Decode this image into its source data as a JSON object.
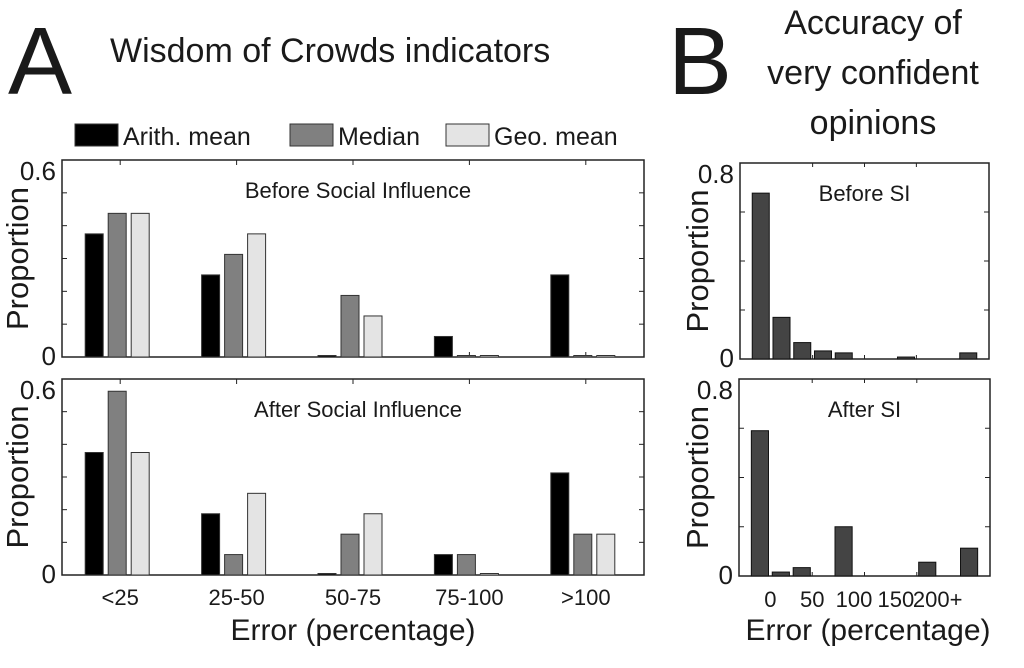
{
  "panel_a": {
    "letter": "A",
    "title": "Wisdom of Crowds indicators"
  },
  "panel_b": {
    "letter": "B",
    "title_lines": [
      "Accuracy of",
      "very confident",
      "opinions"
    ]
  },
  "legend": [
    {
      "name": "Arith. mean",
      "color": "#000000"
    },
    {
      "name": "Median",
      "color": "#808080"
    },
    {
      "name": "Geo. mean",
      "color": "#e4e4e4"
    }
  ],
  "chart_data": [
    {
      "type": "bar",
      "panel": "A",
      "title": "Before Social Influence",
      "ylabel": "Proportion",
      "xlabel": "",
      "ylim": [
        0,
        0.6
      ],
      "ytick_labels": [
        "0",
        "0.6"
      ],
      "categories": [
        "<25",
        "25-50",
        "50-75",
        "75-100",
        ">100"
      ],
      "legend_position": "top",
      "series": [
        {
          "name": "Arith. mean",
          "values": [
            0.375,
            0.25,
            0.0,
            0.0625,
            0.25
          ]
        },
        {
          "name": "Median",
          "values": [
            0.4375,
            0.3125,
            0.1875,
            0.0,
            0.0
          ]
        },
        {
          "name": "Geo. mean",
          "values": [
            0.4375,
            0.375,
            0.125,
            0.0,
            0.0
          ]
        }
      ]
    },
    {
      "type": "bar",
      "panel": "A",
      "title": "After Social Influence",
      "ylabel": "Proportion",
      "xlabel": "Error (percentage)",
      "ylim": [
        0,
        0.6
      ],
      "ytick_labels": [
        "0",
        "0.6"
      ],
      "categories": [
        "<25",
        "25-50",
        "50-75",
        "75-100",
        ">100"
      ],
      "series": [
        {
          "name": "Arith. mean",
          "values": [
            0.375,
            0.1875,
            0.0,
            0.0625,
            0.3125
          ]
        },
        {
          "name": "Median",
          "values": [
            0.5625,
            0.0625,
            0.125,
            0.0625,
            0.125
          ]
        },
        {
          "name": "Geo. mean",
          "values": [
            0.375,
            0.25,
            0.1875,
            0.0,
            0.125
          ]
        }
      ]
    },
    {
      "type": "bar",
      "panel": "B",
      "title": "Before SI",
      "ylabel": "Proportion",
      "xlabel": "",
      "ylim": [
        0,
        0.8
      ],
      "ytick_labels": [
        "0",
        "0.8"
      ],
      "xlim": [
        -37.5,
        262.5
      ],
      "x": [
        -12.5,
        12.5,
        37.5,
        62.5,
        87.5,
        112.5,
        137.5,
        162.5,
        187.5,
        212.5,
        237.5
      ],
      "values": [
        0.677,
        0.17,
        0.067,
        0.033,
        0.025,
        0.0,
        0.0,
        0.008,
        0.0,
        0.0,
        0.025
      ],
      "color": "#444444"
    },
    {
      "type": "bar",
      "panel": "B",
      "title": "After SI",
      "ylabel": "Proportion",
      "xlabel": "Error (percentage)",
      "ylim": [
        0,
        0.8
      ],
      "ytick_labels": [
        "0",
        "0.8"
      ],
      "xlim": [
        -37.5,
        262.5
      ],
      "x": [
        -12.5,
        12.5,
        37.5,
        62.5,
        87.5,
        112.5,
        137.5,
        162.5,
        187.5,
        212.5,
        237.5
      ],
      "values": [
        0.59,
        0.016,
        0.034,
        0.0,
        0.2,
        0.0,
        0.0,
        0.0,
        0.056,
        0.0,
        0.113
      ],
      "xtick_values": [
        0,
        50,
        100,
        150,
        200
      ],
      "xtick_labels": [
        "0",
        "50",
        "100",
        "150",
        "200+"
      ],
      "color": "#444444"
    }
  ]
}
